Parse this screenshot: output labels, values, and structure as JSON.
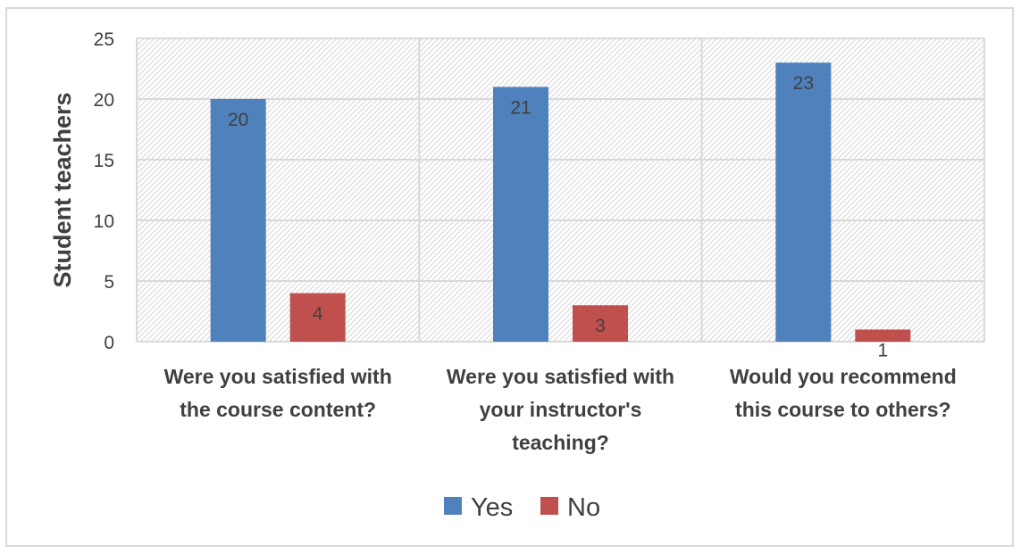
{
  "chart_data": {
    "type": "bar",
    "title": "",
    "xlabel": "",
    "ylabel": "Student teachers",
    "ylim": [
      0,
      25
    ],
    "yticks": [
      0,
      5,
      10,
      15,
      20,
      25
    ],
    "grid": true,
    "legend_position": "bottom",
    "categories": [
      [
        "Were you satisfied with",
        "the course content?"
      ],
      [
        "Were you satisfied with",
        "your instructor's",
        "teaching?"
      ],
      [
        "Would you recommend",
        "this course to others?"
      ]
    ],
    "series": [
      {
        "name": "Yes",
        "color": "#4f81bd",
        "values": [
          20,
          21,
          23
        ]
      },
      {
        "name": "No",
        "color": "#c0504d",
        "values": [
          4,
          3,
          1
        ]
      }
    ]
  }
}
